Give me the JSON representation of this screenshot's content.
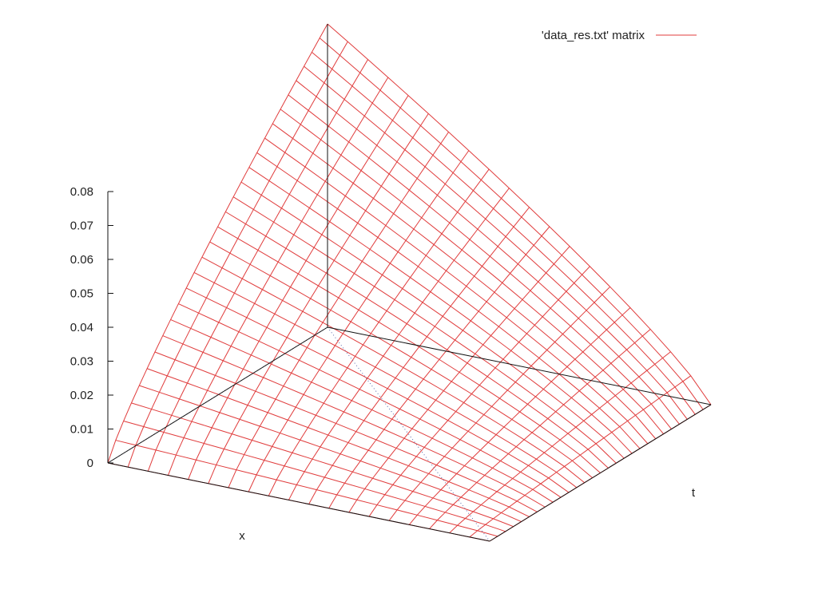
{
  "chart_data": {
    "type": "surface",
    "title": "",
    "legend": {
      "placement": "top-right",
      "entries": [
        {
          "label": "'data_res.txt' matrix",
          "color": "#e03c3c"
        }
      ]
    },
    "x": {
      "label": "x",
      "range": [
        0,
        1
      ],
      "grid_points": 20
    },
    "t": {
      "label": "t",
      "range": [
        0,
        1
      ],
      "grid_points": 29
    },
    "z": {
      "label": "",
      "range": [
        0,
        0.08
      ],
      "ticks": [
        "0",
        "0.01",
        "0.02",
        "0.03",
        "0.04",
        "0.05",
        "0.06",
        "0.07",
        "0.08"
      ]
    },
    "surface": {
      "corner_values": {
        "x0_t0": 0.0,
        "x1_t0": 0.0,
        "x0_t1": 0.0,
        "x1_t1": 0.1
      },
      "shape": "z = x * t scaled to max 0.1"
    }
  }
}
